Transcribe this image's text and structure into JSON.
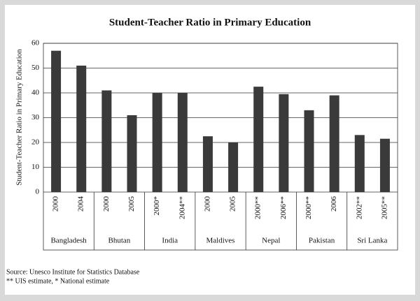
{
  "chart_data": {
    "type": "bar",
    "title": "Student-Teacher Ratio in Primary Education",
    "y_label": "Student-Teacher Ratio in Primary Education",
    "groups": [
      {
        "name": "Bangladesh",
        "categories": [
          "2000",
          "2004"
        ],
        "values": [
          57,
          51
        ]
      },
      {
        "name": "Bhutan",
        "categories": [
          "2000",
          "2005"
        ],
        "values": [
          41,
          31
        ]
      },
      {
        "name": "India",
        "categories": [
          "2000*",
          "2004**"
        ],
        "values": [
          40,
          40
        ]
      },
      {
        "name": "Maldives",
        "categories": [
          "2000",
          "2005"
        ],
        "values": [
          22.5,
          20
        ]
      },
      {
        "name": "Nepal",
        "categories": [
          "2000**",
          "2006**"
        ],
        "values": [
          42.5,
          39.5
        ]
      },
      {
        "name": "Pakistan",
        "categories": [
          "2000**",
          "2006"
        ],
        "values": [
          33,
          39
        ]
      },
      {
        "name": "Sri Lanka",
        "categories": [
          "2002**",
          "2005**"
        ],
        "values": [
          23,
          21.5
        ]
      }
    ],
    "color": "#3a3a3a",
    "ylim": [
      0,
      60
    ],
    "yticks": [
      0,
      10,
      20,
      30,
      40,
      50,
      60
    ],
    "grid": true,
    "source": "Source: Unesco Institute for Statistics Database",
    "note": "** UIS estimate, * National estimate"
  }
}
